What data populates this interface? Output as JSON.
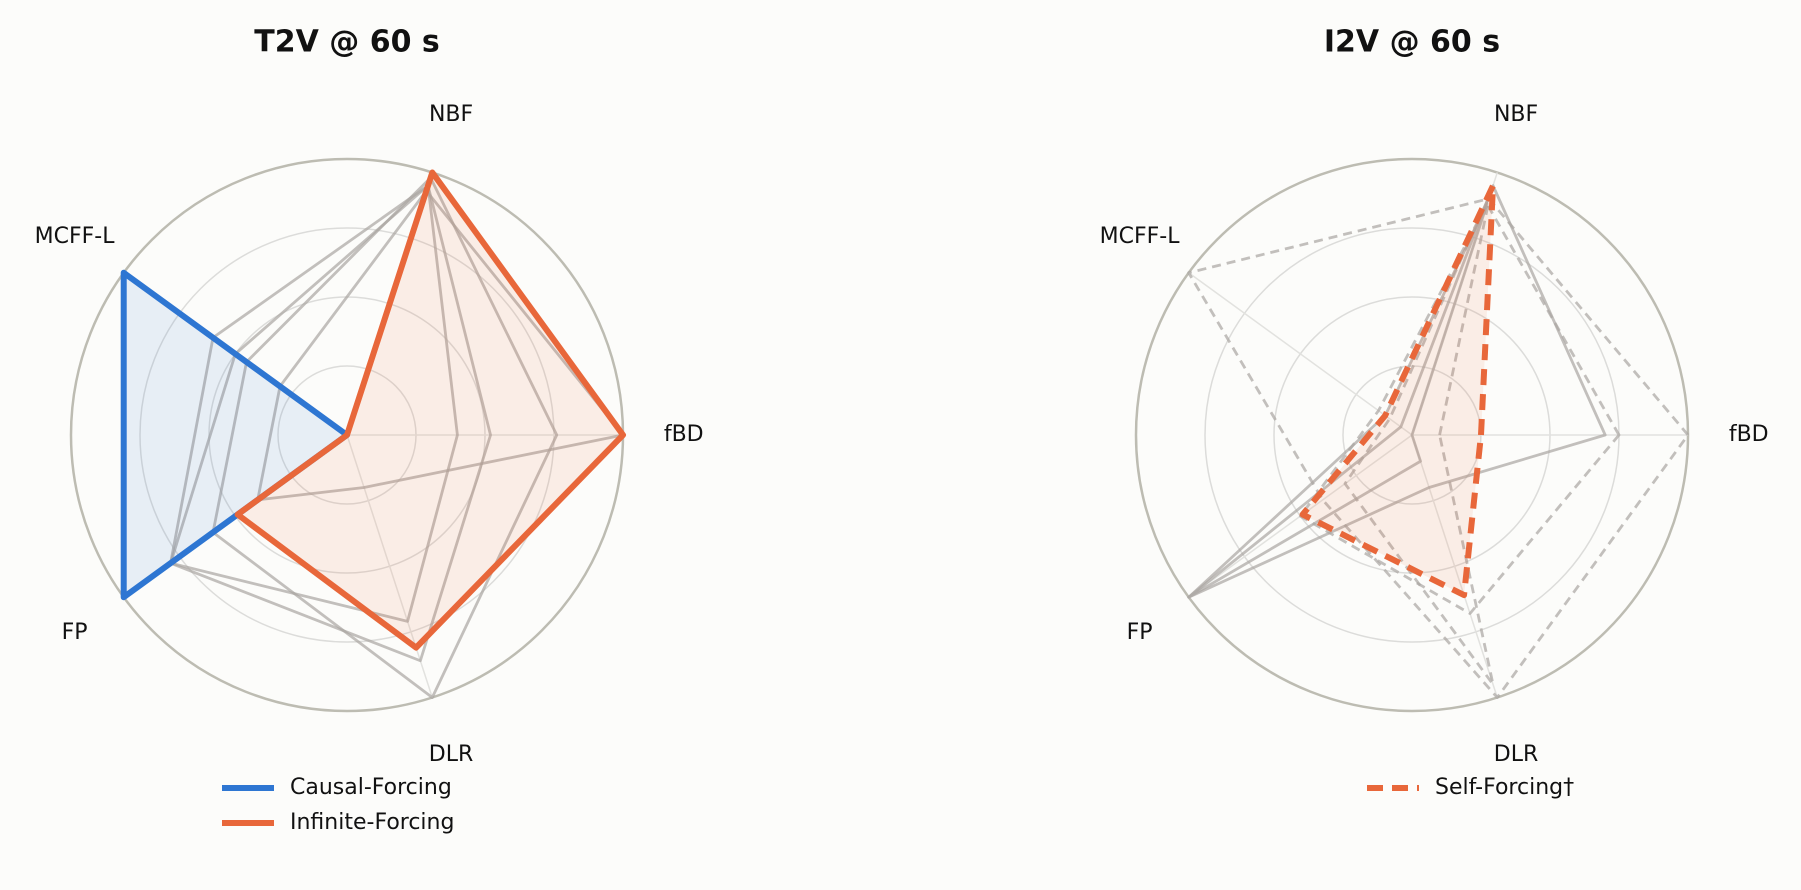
{
  "chart_data": [
    {
      "type": "radar",
      "title": "T2V @ 60 s",
      "categories": [
        "fBD",
        "NBF",
        "MCFF-L",
        "FP",
        "DLR"
      ],
      "rlim": [
        0,
        1
      ],
      "rticks": [
        0.25,
        0.5,
        0.75,
        1
      ],
      "grid": true,
      "legend": "lower center",
      "series": [
        {
          "color": "#a9a5a1",
          "linestyle": "solid",
          "values": [
            0.4,
            0.95,
            0.6,
            0.79,
            0.71
          ]
        },
        {
          "color": "#a9a5a1",
          "linestyle": "solid",
          "values": [
            0.52,
            0.95,
            0.5,
            0.79,
            0.86
          ]
        },
        {
          "color": "#a9a5a1",
          "linestyle": "solid",
          "values": [
            0.76,
            0.98,
            0.45,
            0.6,
            1.0
          ]
        },
        {
          "color": "#a9a5a1",
          "linestyle": "solid",
          "values": [
            1.0,
            0.93,
            0.3,
            0.4,
            0.2
          ]
        },
        {
          "name": "Causal-Forcing",
          "color": "#2e76d2",
          "linestyle": "solid",
          "fill": true,
          "values": [
            0,
            0,
            1.0,
            1.0,
            0
          ]
        },
        {
          "name": "Infinite-Forcing",
          "color": "#e8673a",
          "linestyle": "solid",
          "fill": true,
          "values": [
            1.0,
            1.0,
            0,
            0.49,
            0.81
          ]
        }
      ]
    },
    {
      "type": "radar",
      "title": "I2V @ 60 s",
      "categories": [
        "fBD",
        "NBF",
        "MCFF-L",
        "FP",
        "DLR"
      ],
      "rlim": [
        0,
        1
      ],
      "rticks": [
        0.25,
        0.5,
        0.75,
        1
      ],
      "grid": true,
      "legend": "lower center",
      "series": [
        {
          "color": "#a9a5a1",
          "linestyle": "solid",
          "values": [
            0.7,
            0.95,
            0.05,
            1.0,
            0.2
          ]
        },
        {
          "color": "#a9a5a1",
          "linestyle": "solid",
          "values": [
            0,
            0.88,
            0.12,
            1.0,
            0.1
          ]
        },
        {
          "color": "#a9a5a1",
          "linestyle": "dashed",
          "values": [
            1.0,
            0.9,
            1.0,
            0.4,
            1.0
          ]
        },
        {
          "color": "#a9a5a1",
          "linestyle": "dashed",
          "values": [
            0.75,
            0.88,
            0.15,
            0.5,
            0.68
          ]
        },
        {
          "color": "#a9a5a1",
          "linestyle": "dashed",
          "values": [
            0.1,
            0.92,
            0.1,
            0.3,
            0.95
          ]
        },
        {
          "name": "Self-Forcing†",
          "color": "#e8673a",
          "linestyle": "dashed",
          "fill": true,
          "values": [
            0.25,
            0.95,
            0.12,
            0.49,
            0.61
          ]
        }
      ]
    }
  ]
}
